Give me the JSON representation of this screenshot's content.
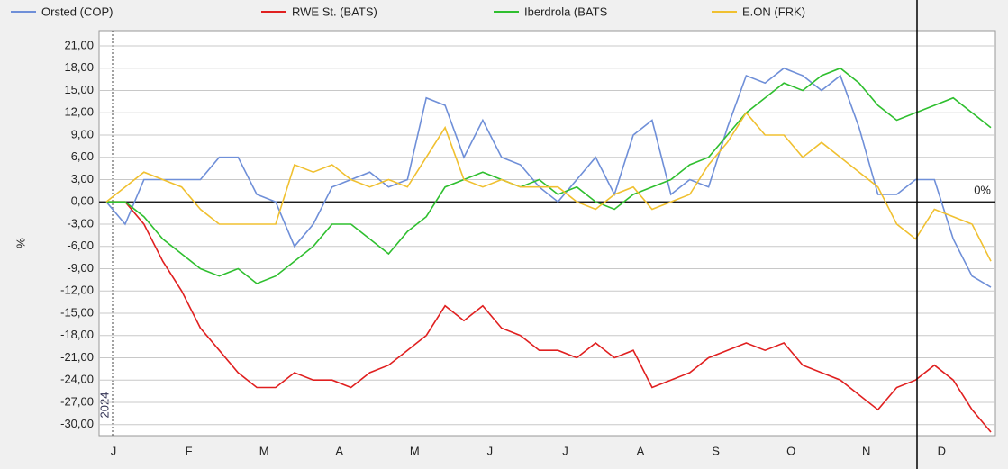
{
  "chart_data": {
    "type": "line",
    "ylabel": "%",
    "zero_label": "0%",
    "year_label": "2024",
    "categories": [
      "J",
      null,
      null,
      null,
      "F",
      null,
      null,
      null,
      "M",
      null,
      null,
      null,
      "A",
      null,
      null,
      null,
      "M",
      null,
      null,
      null,
      "J",
      null,
      null,
      null,
      "J",
      null,
      null,
      null,
      "A",
      null,
      null,
      null,
      "S",
      null,
      null,
      null,
      "O",
      null,
      null,
      null,
      "N",
      null,
      null,
      null,
      "D",
      null,
      null,
      null
    ],
    "series": [
      {
        "name": "Orsted (COP)",
        "color": "#6f8fd8",
        "values": [
          0,
          -3,
          3,
          3,
          3,
          3,
          6,
          6,
          1,
          0,
          -6,
          -3,
          2,
          3,
          4,
          2,
          3,
          14,
          13,
          6,
          11,
          6,
          5,
          2,
          0,
          3,
          6,
          1,
          9,
          11,
          1,
          3,
          2,
          10,
          17,
          16,
          18,
          17,
          15,
          17,
          10,
          1,
          1,
          3,
          3,
          -5,
          -10,
          -11.5
        ]
      },
      {
        "name": "RWE St. (BATS)",
        "color": "#e02020",
        "values": [
          0,
          0,
          -3,
          -8,
          -12,
          -17,
          -20,
          -23,
          -25,
          -25,
          -23,
          -24,
          -24,
          -25,
          -23,
          -22,
          -20,
          -18,
          -14,
          -16,
          -14,
          -17,
          -18,
          -20,
          -20,
          -21,
          -19,
          -21,
          -20,
          -25,
          -24,
          -23,
          -21,
          -20,
          -19,
          -20,
          -19,
          -22,
          -23,
          -24,
          -26,
          -28,
          -25,
          -24,
          -22,
          -24,
          -28,
          -31
        ]
      },
      {
        "name": "Iberdrola (BATS",
        "color": "#2fbf2f",
        "values": [
          0,
          0,
          -2,
          -5,
          -7,
          -9,
          -10,
          -9,
          -11,
          -10,
          -8,
          -6,
          -3,
          -3,
          -5,
          -7,
          -4,
          -2,
          2,
          3,
          4,
          3,
          2,
          3,
          1,
          2,
          0,
          -1,
          1,
          2,
          3,
          5,
          6,
          9,
          12,
          14,
          16,
          15,
          17,
          18,
          16,
          13,
          11,
          12,
          13,
          14,
          12,
          10
        ]
      },
      {
        "name": "E.ON (FRK)",
        "color": "#f0c030",
        "values": [
          0,
          2,
          4,
          3,
          2,
          -1,
          -3,
          -3,
          -3,
          -3,
          5,
          4,
          5,
          3,
          2,
          3,
          2,
          6,
          10,
          3,
          2,
          3,
          2,
          2,
          2,
          0,
          -1,
          1,
          2,
          -1,
          0,
          1,
          5,
          8,
          12,
          9,
          9,
          6,
          8,
          6,
          4,
          2,
          -3,
          -5,
          -1,
          -2,
          -3,
          -8
        ]
      }
    ],
    "ylim": [
      -31,
      22.5
    ],
    "yticks": [
      {
        "value": 21,
        "label": "21,00"
      },
      {
        "value": 18,
        "label": "18,00"
      },
      {
        "value": 15,
        "label": "15,00"
      },
      {
        "value": 12,
        "label": "12,00"
      },
      {
        "value": 9,
        "label": "9,00"
      },
      {
        "value": 6,
        "label": "6,00"
      },
      {
        "value": 3,
        "label": "3,00"
      },
      {
        "value": 0,
        "label": "0,00"
      },
      {
        "value": -3,
        "label": "-3,00"
      },
      {
        "value": -6,
        "label": "-6,00"
      },
      {
        "value": -9,
        "label": "-9,00"
      },
      {
        "value": -12,
        "label": "-12,00"
      },
      {
        "value": -15,
        "label": "-15,00"
      },
      {
        "value": -18,
        "label": "-18,00"
      },
      {
        "value": -21,
        "label": "-21,00"
      },
      {
        "value": -24,
        "label": "-24,00"
      },
      {
        "value": -27,
        "label": "-27,00"
      },
      {
        "value": -30,
        "label": "-30,00"
      }
    ],
    "grid": true
  }
}
